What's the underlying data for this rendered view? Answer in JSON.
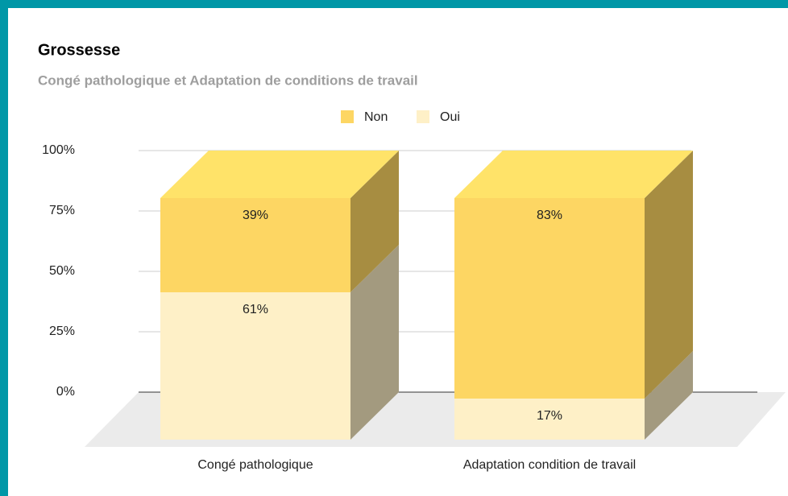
{
  "chart_data": {
    "type": "bar",
    "stacked": true,
    "title": "Grossesse",
    "subtitle": "Congé pathologique et Adaptation de conditions de travail",
    "categories": [
      "Congé pathologique",
      "Adaptation condition de travail"
    ],
    "series": [
      {
        "name": "Non",
        "color": "#fdd663",
        "values": [
          39,
          83
        ],
        "value_labels": [
          "39%",
          "83%"
        ]
      },
      {
        "name": "Oui",
        "color": "#fef0c7",
        "values": [
          61,
          17
        ],
        "value_labels": [
          "61%",
          "17%"
        ]
      }
    ],
    "ylim": [
      0,
      100
    ],
    "yticks": [
      {
        "value": 0,
        "label": "0%"
      },
      {
        "value": 25,
        "label": "25%"
      },
      {
        "value": 50,
        "label": "50%"
      },
      {
        "value": 75,
        "label": "75%"
      },
      {
        "value": 100,
        "label": "100%"
      }
    ],
    "grid": true,
    "legend": "top"
  }
}
